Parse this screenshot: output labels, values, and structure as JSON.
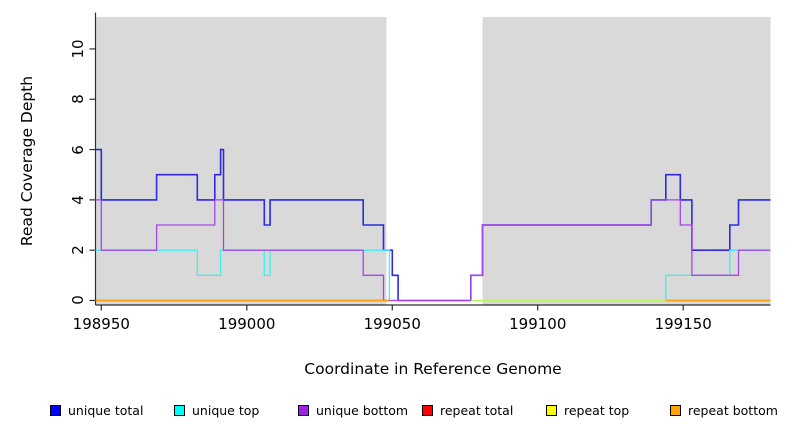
{
  "chart_data": {
    "type": "line",
    "title": "",
    "xlabel": "Coordinate in Reference Genome",
    "ylabel": "Read Coverage Depth",
    "x_domain": [
      198948,
      199180
    ],
    "y_domain": [
      -0.16,
      11.27
    ],
    "x_ticks": [
      198950,
      199000,
      199050,
      199100,
      199150
    ],
    "y_ticks": [
      0,
      2,
      4,
      6,
      8,
      10
    ],
    "grid": false,
    "legend_position": "bottom",
    "plot_background": "#ffffff",
    "shaded_regions": {
      "color": "#d9d9d9",
      "ranges": [
        [
          198948,
          199048
        ],
        [
          199081,
          199180
        ]
      ]
    },
    "axis_color": "#2e2e2e",
    "series": [
      {
        "name": "unique total",
        "color": "#2b2be0",
        "width": 1.6,
        "segments": [
          {
            "steps": [
              [
                198948,
                6
              ],
              [
                198950,
                4
              ],
              [
                198969,
                5
              ],
              [
                198983,
                4
              ],
              [
                198989,
                5
              ],
              [
                198991,
                6
              ],
              [
                198992,
                4
              ],
              [
                199006,
                3
              ],
              [
                199008,
                4
              ],
              [
                199040,
                3
              ],
              [
                199047,
                2
              ],
              [
                199050,
                1
              ],
              [
                199052,
                0
              ],
              [
                199077,
                1
              ],
              [
                199081,
                3
              ],
              [
                199139,
                4
              ],
              [
                199144,
                5
              ],
              [
                199149,
                4
              ],
              [
                199153,
                2
              ],
              [
                199166,
                3
              ],
              [
                199169,
                4
              ]
            ],
            "end": 199180
          }
        ]
      },
      {
        "name": "unique top",
        "color": "#45eded",
        "width": 1.3,
        "segments": [
          {
            "steps": [
              [
                198948,
                2
              ],
              [
                198983,
                1
              ],
              [
                198991,
                2
              ],
              [
                199006,
                1
              ],
              [
                199008,
                2
              ],
              [
                199049,
                0
              ],
              [
                199144,
                1
              ],
              [
                199166,
                2
              ]
            ],
            "end": 199180
          }
        ]
      },
      {
        "name": "unique bottom",
        "color": "#a743ef",
        "width": 1.3,
        "segments": [
          {
            "steps": [
              [
                198948,
                4
              ],
              [
                198950,
                2
              ],
              [
                198969,
                3
              ],
              [
                198989,
                4
              ],
              [
                198992,
                2
              ],
              [
                199040,
                1
              ],
              [
                199047,
                0
              ],
              [
                199077,
                1
              ],
              [
                199081,
                3
              ],
              [
                199139,
                4
              ],
              [
                199149,
                3
              ],
              [
                199153,
                1
              ],
              [
                199169,
                2
              ]
            ],
            "end": 199180
          }
        ]
      },
      {
        "name": "repeat total",
        "color": "#dd0000",
        "width": 1.3,
        "segments": [
          {
            "steps": [
              [
                198948,
                0
              ]
            ],
            "end": 199049
          },
          {
            "steps": [
              [
                199144,
                0
              ]
            ],
            "end": 199180
          }
        ]
      },
      {
        "name": "repeat top",
        "color": "#ffff00",
        "opacity": 0.6,
        "width": 1.3,
        "segments": [
          {
            "steps": [
              [
                198948,
                0
              ]
            ],
            "end": 199049
          },
          {
            "steps": [
              [
                199077,
                0
              ]
            ],
            "end": 199180
          }
        ]
      },
      {
        "name": "repeat bottom",
        "color": "#ff9e15",
        "width": 1.5,
        "segments": [
          {
            "steps": [
              [
                198948,
                0
              ]
            ],
            "end": 199049
          },
          {
            "steps": [
              [
                199144,
                0
              ]
            ],
            "end": 199180
          }
        ]
      }
    ]
  },
  "legend": {
    "items": [
      {
        "label": "unique total",
        "color": "#0000ff"
      },
      {
        "label": "unique top",
        "color": "#00ffff"
      },
      {
        "label": "unique bottom",
        "color": "#a020f0"
      },
      {
        "label": "repeat total",
        "color": "#ff0000"
      },
      {
        "label": "repeat top",
        "color": "#ffff00"
      },
      {
        "label": "repeat bottom",
        "color": "#ffa500"
      }
    ]
  }
}
